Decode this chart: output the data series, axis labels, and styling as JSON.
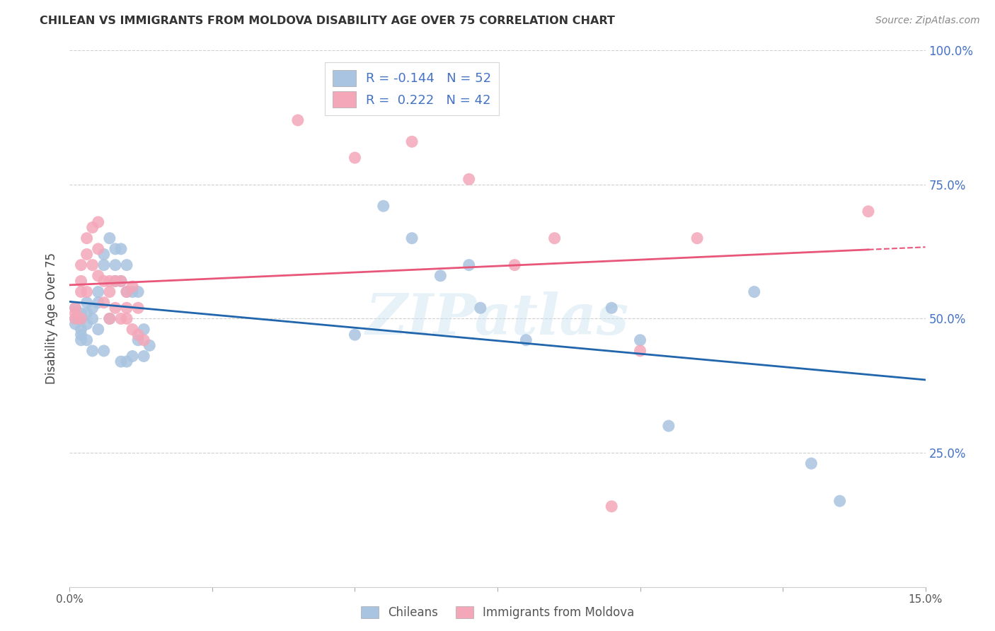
{
  "title": "CHILEAN VS IMMIGRANTS FROM MOLDOVA DISABILITY AGE OVER 75 CORRELATION CHART",
  "source": "Source: ZipAtlas.com",
  "ylabel": "Disability Age Over 75",
  "xmin": 0.0,
  "xmax": 0.15,
  "ymin": 0.0,
  "ymax": 1.0,
  "yticks": [
    0.0,
    0.25,
    0.5,
    0.75,
    1.0
  ],
  "ytick_labels": [
    "",
    "25.0%",
    "50.0%",
    "75.0%",
    "100.0%"
  ],
  "xticks": [
    0.0,
    0.025,
    0.05,
    0.075,
    0.1,
    0.125,
    0.15
  ],
  "xtick_labels": [
    "0.0%",
    "",
    "",
    "",
    "",
    "",
    "15.0%"
  ],
  "chilean_R": -0.144,
  "chilean_N": 52,
  "moldova_R": 0.222,
  "moldova_N": 42,
  "chilean_color": "#a8c4e0",
  "moldova_color": "#f4a7b9",
  "chilean_line_color": "#2166ac",
  "moldova_line_color": "#e8567a",
  "background_color": "#ffffff",
  "watermark_text": "ZIPatlas",
  "chilean_x": [
    0.001,
    0.001,
    0.001,
    0.002,
    0.002,
    0.002,
    0.002,
    0.002,
    0.003,
    0.003,
    0.003,
    0.003,
    0.004,
    0.004,
    0.004,
    0.005,
    0.005,
    0.005,
    0.006,
    0.006,
    0.006,
    0.007,
    0.007,
    0.008,
    0.008,
    0.008,
    0.009,
    0.009,
    0.009,
    0.01,
    0.01,
    0.01,
    0.011,
    0.011,
    0.012,
    0.012,
    0.013,
    0.013,
    0.014,
    0.05,
    0.055,
    0.06,
    0.065,
    0.07,
    0.072,
    0.08,
    0.095,
    0.1,
    0.105,
    0.12,
    0.13,
    0.135
  ],
  "chilean_y": [
    0.52,
    0.5,
    0.49,
    0.51,
    0.5,
    0.48,
    0.47,
    0.46,
    0.53,
    0.51,
    0.49,
    0.46,
    0.52,
    0.5,
    0.44,
    0.55,
    0.53,
    0.48,
    0.62,
    0.6,
    0.44,
    0.65,
    0.5,
    0.63,
    0.6,
    0.57,
    0.63,
    0.57,
    0.42,
    0.6,
    0.55,
    0.42,
    0.55,
    0.43,
    0.55,
    0.46,
    0.48,
    0.43,
    0.45,
    0.47,
    0.71,
    0.65,
    0.58,
    0.6,
    0.52,
    0.46,
    0.52,
    0.46,
    0.3,
    0.55,
    0.23,
    0.16
  ],
  "moldova_x": [
    0.001,
    0.001,
    0.001,
    0.002,
    0.002,
    0.002,
    0.002,
    0.003,
    0.003,
    0.003,
    0.004,
    0.004,
    0.005,
    0.005,
    0.005,
    0.006,
    0.006,
    0.007,
    0.007,
    0.007,
    0.008,
    0.008,
    0.009,
    0.009,
    0.01,
    0.01,
    0.01,
    0.011,
    0.011,
    0.012,
    0.012,
    0.013,
    0.04,
    0.05,
    0.06,
    0.07,
    0.078,
    0.085,
    0.095,
    0.1,
    0.11,
    0.14
  ],
  "moldova_y": [
    0.52,
    0.51,
    0.5,
    0.6,
    0.57,
    0.55,
    0.5,
    0.65,
    0.62,
    0.55,
    0.67,
    0.6,
    0.68,
    0.63,
    0.58,
    0.57,
    0.53,
    0.57,
    0.55,
    0.5,
    0.57,
    0.52,
    0.57,
    0.5,
    0.55,
    0.52,
    0.5,
    0.56,
    0.48,
    0.52,
    0.47,
    0.46,
    0.87,
    0.8,
    0.83,
    0.76,
    0.6,
    0.65,
    0.15,
    0.44,
    0.65,
    0.7
  ]
}
